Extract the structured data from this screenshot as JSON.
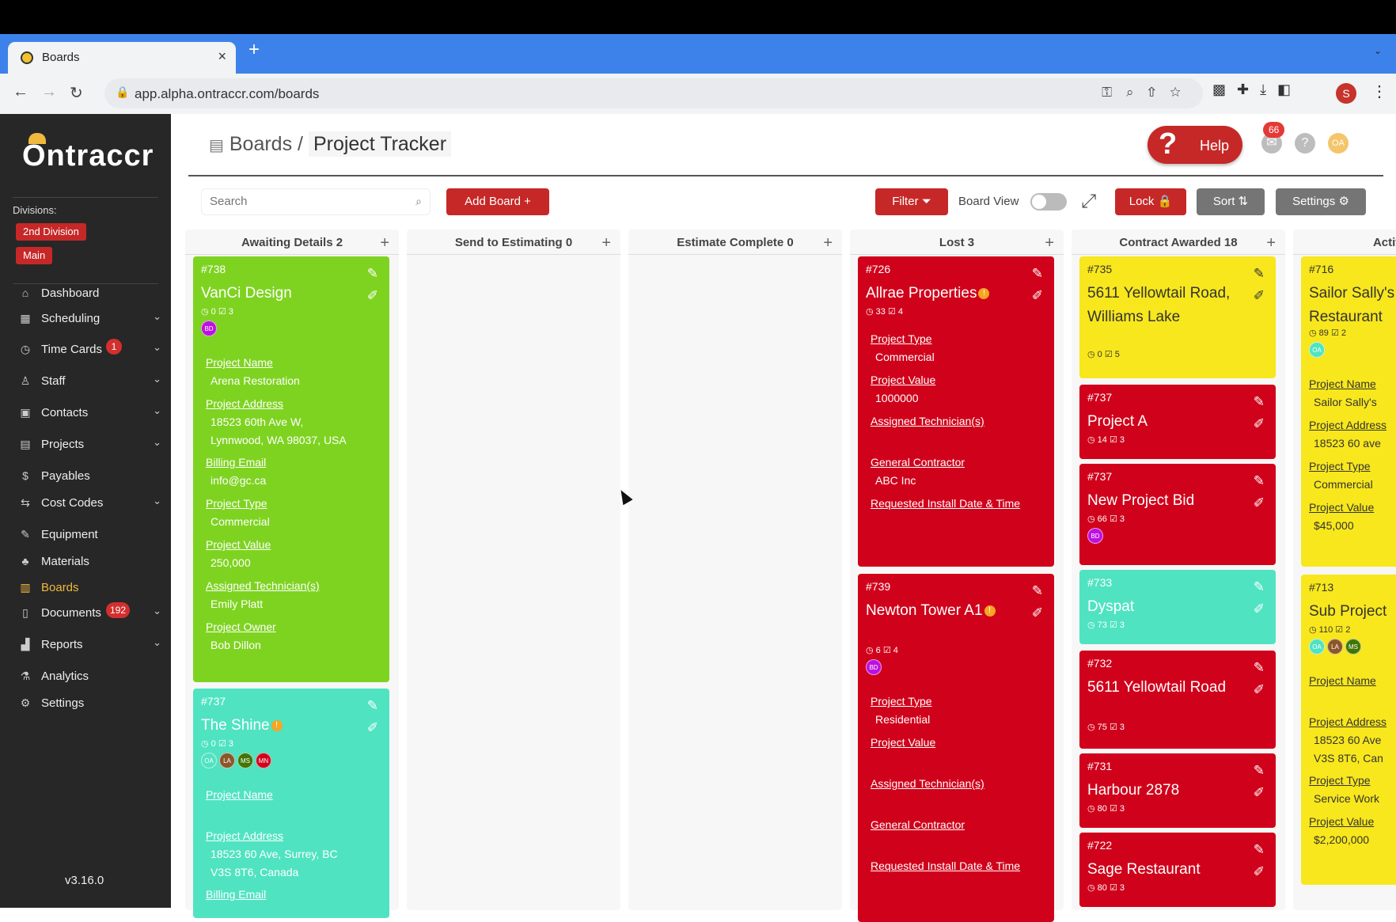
{
  "browser": {
    "tab_title": "Boards",
    "tab_close": "×",
    "new_tab": "+",
    "url": "app.alpha.ontraccr.com/boards",
    "profile_initial": "S"
  },
  "sidebar": {
    "logo": "Ontraccr",
    "divisions_label": "Divisions:",
    "divisions": [
      "2nd Division",
      "Main"
    ],
    "items": [
      {
        "label": "Dashboard",
        "icon": "home-icon",
        "glyph": "⌂"
      },
      {
        "label": "Scheduling",
        "icon": "calendar-icon",
        "glyph": "▦",
        "chev": "⌄"
      },
      {
        "label": "Time Cards",
        "icon": "clock-icon",
        "glyph": "◷",
        "badge": "1",
        "chev": "⌄"
      },
      {
        "label": "Staff",
        "icon": "person-icon",
        "glyph": "♙",
        "chev": "⌄"
      },
      {
        "label": "Contacts",
        "icon": "contacts-icon",
        "glyph": "▣",
        "chev": "⌄"
      },
      {
        "label": "Projects",
        "icon": "projects-icon",
        "glyph": "▤",
        "chev": "⌄"
      },
      {
        "label": "Payables",
        "icon": "dollar-icon",
        "glyph": "$"
      },
      {
        "label": "Cost Codes",
        "icon": "swap-icon",
        "glyph": "⇆",
        "chev": "⌄"
      },
      {
        "label": "Equipment",
        "icon": "wrench-icon",
        "glyph": "✎"
      },
      {
        "label": "Materials",
        "icon": "materials-icon",
        "glyph": "♣"
      },
      {
        "label": "Boards",
        "icon": "boards-icon",
        "glyph": "▥",
        "active": true
      },
      {
        "label": "Documents",
        "icon": "document-icon",
        "glyph": "▯",
        "badge": "192",
        "chev": "⌄"
      },
      {
        "label": "Reports",
        "icon": "chart-icon",
        "glyph": "▟",
        "chev": "⌄"
      },
      {
        "label": "Analytics",
        "icon": "flask-icon",
        "glyph": "⚗"
      },
      {
        "label": "Settings",
        "icon": "gear-icon",
        "glyph": "⚙"
      }
    ],
    "version": "v3.16.0"
  },
  "header": {
    "breadcrumb_root": "Boards",
    "breadcrumb_sep": "/",
    "breadcrumb_current": "Project Tracker",
    "help_label": "Help",
    "notif_count": "66",
    "user_initials": "OA"
  },
  "toolbar": {
    "search_placeholder": "Search",
    "add_board": "Add Board  +",
    "filter": "Filter  ⏷",
    "board_view": "Board View",
    "lock": "Lock  🔒",
    "sort": "Sort  ⇅",
    "settings": "Settings  ⚙"
  },
  "columns": [
    {
      "title": "Awaiting Details 2",
      "add": "+",
      "cards": [
        {
          "num": "#738",
          "title": "VanCi Design",
          "color": "green",
          "time": "0",
          "tasks": "3",
          "avatars": [
            {
              "i": "BD",
              "c": "#bd10e0"
            }
          ],
          "fields": [
            {
              "k": "Project Name",
              "v": "Arena Restoration"
            },
            {
              "k": "Project Address",
              "v": "18523 60th Ave W,",
              "v2": "Lynnwood, WA 98037, USA"
            },
            {
              "k": "Billing Email",
              "v": "info@gc.ca"
            },
            {
              "k": "Project Type",
              "v": "Commercial"
            },
            {
              "k": "Project Value",
              "v": "250,000"
            },
            {
              "k": "Assigned Technician(s)",
              "v": "Emily Platt"
            },
            {
              "k": "Project Owner",
              "v": "Bob Dillon"
            }
          ]
        },
        {
          "num": "#737",
          "title": "The Shine",
          "color": "teal",
          "alert": "!",
          "time": "0",
          "tasks": "3",
          "avatars": [
            {
              "i": "OA",
              "c": "#50e3c2"
            },
            {
              "i": "LA",
              "c": "#8b572a"
            },
            {
              "i": "MS",
              "c": "#417505"
            },
            {
              "i": "MN",
              "c": "#d0021b"
            }
          ],
          "fields": [
            {
              "k": "Project Name",
              "v": ""
            },
            {
              "k": "Project Address",
              "v": "18523 60 Ave, Surrey, BC",
              "v2": "V3S 8T6, Canada"
            },
            {
              "k": "Billing Email",
              "v": ""
            }
          ]
        }
      ]
    },
    {
      "title": "Send to Estimating 0",
      "add": "+",
      "cards": []
    },
    {
      "title": "Estimate Complete 0",
      "add": "+",
      "cards": []
    },
    {
      "title": "Lost 3",
      "add": "+",
      "cards": [
        {
          "num": "#726",
          "title": "Allrae Properties",
          "color": "red",
          "alert": "!",
          "time": "33",
          "tasks": "4",
          "avatars": [],
          "fields": [
            {
              "k": "Project Type",
              "v": "Commercial"
            },
            {
              "k": "Project Value",
              "v": "1000000"
            },
            {
              "k": "Assigned Technician(s)",
              "v": ""
            },
            {
              "k": "General Contractor",
              "v": "ABC Inc"
            },
            {
              "k": "Requested Install Date & Time",
              "v": ""
            }
          ]
        },
        {
          "num": "#739",
          "title": "Newton Tower A1",
          "color": "red",
          "alert": "!",
          "time": "6",
          "tasks": "4",
          "avatars": [
            {
              "i": "BD",
              "c": "#bd10e0"
            }
          ],
          "fields": [
            {
              "k": "Project Type",
              "v": "Residential"
            },
            {
              "k": "Project Value",
              "v": ""
            },
            {
              "k": "Assigned Technician(s)",
              "v": ""
            },
            {
              "k": "General Contractor",
              "v": ""
            },
            {
              "k": "Requested Install Date & Time",
              "v": ""
            }
          ]
        }
      ]
    },
    {
      "title": "Contract Awarded 18",
      "add": "+",
      "cards": [
        {
          "num": "#735",
          "title": "5611 Yellowtail Road, Williams Lake",
          "color": "yellow",
          "time": "0",
          "tasks": "5",
          "avatars": [],
          "fields": []
        },
        {
          "num": "#737",
          "title": "Project A",
          "color": "red",
          "time": "14",
          "tasks": "3",
          "avatars": [],
          "fields": []
        },
        {
          "num": "#737",
          "title": "New Project Bid",
          "color": "red",
          "time": "66",
          "tasks": "3",
          "avatars": [
            {
              "i": "BD",
              "c": "#bd10e0"
            }
          ],
          "fields": []
        },
        {
          "num": "#733",
          "title": "Dyspat",
          "color": "teal",
          "time": "73",
          "tasks": "3",
          "avatars": [],
          "fields": []
        },
        {
          "num": "#732",
          "title": "5611 Yellowtail Road",
          "color": "red",
          "time": "75",
          "tasks": "3",
          "avatars": [],
          "fields": []
        },
        {
          "num": "#731",
          "title": "Harbour 2878",
          "color": "red",
          "time": "80",
          "tasks": "3",
          "avatars": [],
          "fields": []
        },
        {
          "num": "#722",
          "title": "Sage Restaurant",
          "color": "red",
          "time": "80",
          "tasks": "3",
          "avatars": [],
          "fields": []
        }
      ]
    },
    {
      "title": "Active",
      "add": "",
      "cards": [
        {
          "num": "#716",
          "title": "Sailor Sally's Restaurant",
          "color": "yellow",
          "time": "89",
          "tasks": "2",
          "avatars": [
            {
              "i": "OA",
              "c": "#50e3c2"
            }
          ],
          "fields": [
            {
              "k": "Project Name",
              "v": "Sailor Sally's"
            },
            {
              "k": "Project Address",
              "v": "18523 60 ave"
            },
            {
              "k": "Project Type",
              "v": "Commercial"
            },
            {
              "k": "Project Value",
              "v": "$45,000"
            }
          ]
        },
        {
          "num": "#713",
          "title": "Sub Project",
          "color": "yellow",
          "time": "110",
          "tasks": "2",
          "avatars": [
            {
              "i": "OA",
              "c": "#50e3c2"
            },
            {
              "i": "LA",
              "c": "#8b572a"
            },
            {
              "i": "MS",
              "c": "#417505"
            }
          ],
          "fields": [
            {
              "k": "Project Name",
              "v": ""
            },
            {
              "k": "Project Address",
              "v": "18523 60 Ave",
              "v2": "V3S 8T6, Can"
            },
            {
              "k": "Project Type",
              "v": "Service Work"
            },
            {
              "k": "Project Value",
              "v": "$2,200,000"
            }
          ]
        }
      ]
    }
  ],
  "colors": {
    "red": "#d0021b",
    "green": "#7ed321",
    "teal": "#50e3c2",
    "yellow": "#f8e71c",
    "sidebar": "#272727",
    "accent": "#c62828"
  }
}
